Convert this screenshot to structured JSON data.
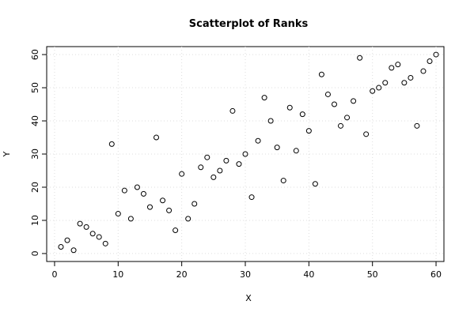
{
  "chart_data": {
    "type": "scatter",
    "title": "Scatterplot of Ranks",
    "x_label": "X",
    "y_label": "Y",
    "x": [
      1,
      2,
      3,
      4,
      5,
      6,
      7,
      8,
      9,
      10,
      11,
      12,
      13,
      14,
      15,
      16,
      17,
      18,
      19,
      20,
      21,
      22,
      23,
      24,
      25,
      26,
      27,
      28,
      29,
      30,
      31,
      32,
      33,
      34,
      35,
      36,
      37,
      38,
      39,
      40,
      41,
      42,
      43,
      44,
      45,
      46,
      47,
      48,
      49,
      50,
      51,
      52,
      53,
      54,
      55,
      56,
      57,
      58,
      59,
      60
    ],
    "values": [
      2,
      4,
      1,
      9,
      8,
      6,
      5,
      3,
      33,
      12,
      19,
      10.5,
      20,
      18,
      14,
      35,
      16,
      13,
      7,
      24,
      10.5,
      15,
      26,
      29,
      23,
      25,
      28,
      43,
      27,
      30,
      17,
      34,
      47,
      40,
      32,
      22,
      44,
      31,
      42,
      37,
      21,
      54,
      48,
      45,
      38.5,
      41,
      46,
      59,
      36,
      49,
      50,
      51.5,
      56,
      57,
      51.5,
      53,
      38.5,
      55,
      58,
      60
    ],
    "color": "#000000",
    "xlim": [
      -1.24,
      61.24
    ],
    "ylim": [
      -2.4,
      62.4
    ],
    "xticks": [
      0,
      10,
      20,
      30,
      40,
      50,
      60
    ],
    "yticks": [
      0,
      10,
      20,
      30,
      40,
      50,
      60
    ],
    "grid": true
  }
}
